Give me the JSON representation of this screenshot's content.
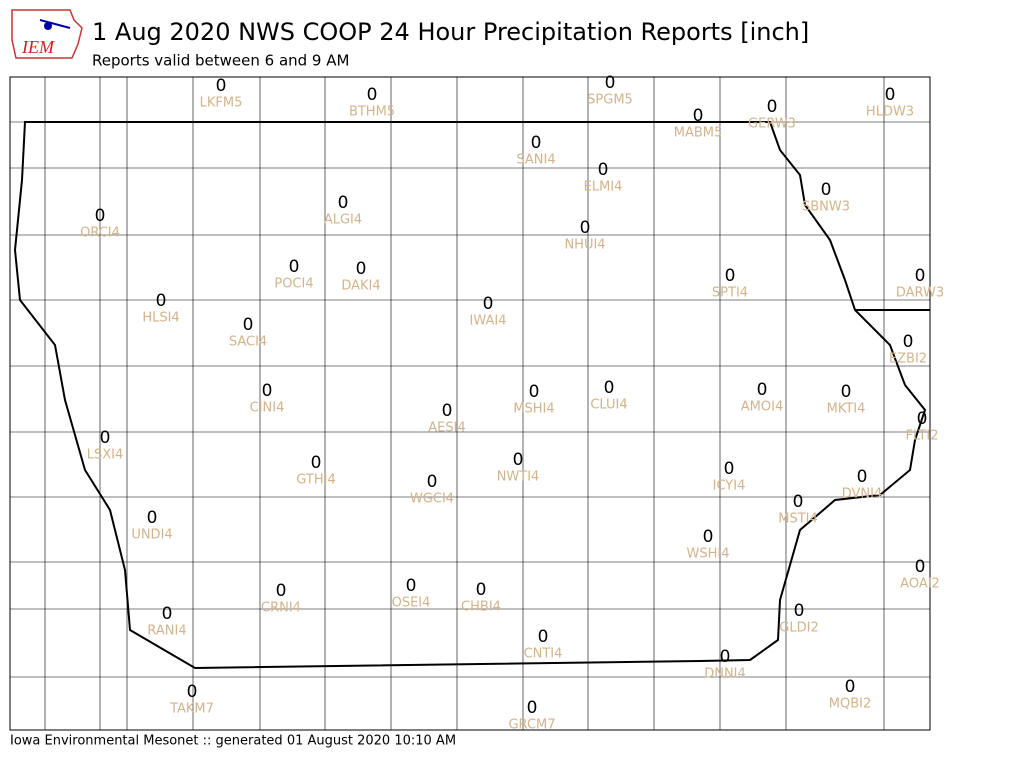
{
  "header": {
    "logo": "IEM",
    "title": "1 Aug 2020 NWS COOP 24 Hour Precipitation Reports [inch]",
    "subtitle": "Reports valid between 6 and 9 AM"
  },
  "footer": "Iowa Environmental Mesonet :: generated 01 August 2020 10:10 AM",
  "stations": [
    {
      "id": "LKFM5",
      "value": 0
    },
    {
      "id": "BTHM5",
      "value": 0
    },
    {
      "id": "SPGM5",
      "value": 0
    },
    {
      "id": "MABM5",
      "value": 0
    },
    {
      "id": "GERW3",
      "value": 0
    },
    {
      "id": "HLDW3",
      "value": 0
    },
    {
      "id": "SANI4",
      "value": 0
    },
    {
      "id": "ELMI4",
      "value": 0
    },
    {
      "id": "SBNW3",
      "value": 0
    },
    {
      "id": "ORCI4",
      "value": 0
    },
    {
      "id": "ALGI4",
      "value": 0
    },
    {
      "id": "NHUI4",
      "value": 0
    },
    {
      "id": "POCI4",
      "value": 0
    },
    {
      "id": "DAKI4",
      "value": 0
    },
    {
      "id": "SPTI4",
      "value": 0
    },
    {
      "id": "DARW3",
      "value": 0
    },
    {
      "id": "HLSI4",
      "value": 0
    },
    {
      "id": "IWAI4",
      "value": 0
    },
    {
      "id": "SACI4",
      "value": 0
    },
    {
      "id": "EZBI2",
      "value": 0
    },
    {
      "id": "CINI4",
      "value": 0
    },
    {
      "id": "MSHI4",
      "value": 0
    },
    {
      "id": "CLUI4",
      "value": 0
    },
    {
      "id": "AMOI4",
      "value": 0
    },
    {
      "id": "MKTI4",
      "value": 0
    },
    {
      "id": "FLTI2",
      "value": 0
    },
    {
      "id": "AESI4",
      "value": 0
    },
    {
      "id": "LSXI4",
      "value": 0
    },
    {
      "id": "GTHI4",
      "value": 0
    },
    {
      "id": "NWTI4",
      "value": 0
    },
    {
      "id": "ICYI4",
      "value": 0
    },
    {
      "id": "WGCI4",
      "value": 0
    },
    {
      "id": "DVNI4",
      "value": 0
    },
    {
      "id": "MSTI4",
      "value": 0
    },
    {
      "id": "UNDI4",
      "value": 0
    },
    {
      "id": "WSHI4",
      "value": 0
    },
    {
      "id": "AOAI2",
      "value": 0
    },
    {
      "id": "CRNI4",
      "value": 0
    },
    {
      "id": "OSEI4",
      "value": 0
    },
    {
      "id": "CHBI4",
      "value": 0
    },
    {
      "id": "RANI4",
      "value": 0
    },
    {
      "id": "GLDI2",
      "value": 0
    },
    {
      "id": "CNTI4",
      "value": 0
    },
    {
      "id": "DNNI4",
      "value": 0
    },
    {
      "id": "TAKM7",
      "value": 0
    },
    {
      "id": "MQBI2",
      "value": 0
    },
    {
      "id": "GRCM7",
      "value": 0
    }
  ]
}
